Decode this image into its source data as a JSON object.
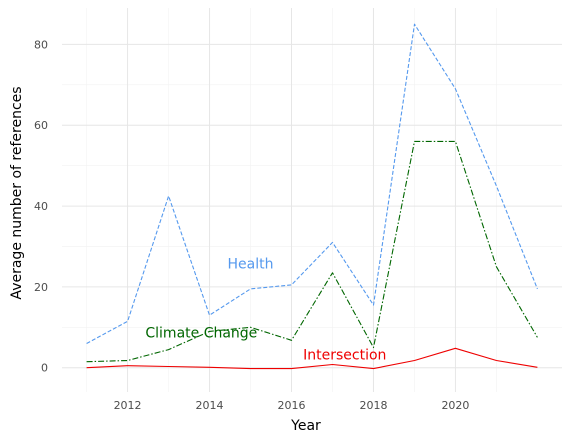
{
  "chart_data": {
    "type": "line",
    "xlabel": "Year",
    "ylabel": "Average number of references",
    "x": [
      2011,
      2012,
      2013,
      2014,
      2015,
      2016,
      2017,
      2018,
      2019,
      2020,
      2021,
      2022
    ],
    "xlim": [
      2010.4,
      2022.6
    ],
    "ylim": [
      -6,
      89
    ],
    "x_ticks": [
      2012,
      2014,
      2016,
      2018,
      2020
    ],
    "y_ticks": [
      0,
      20,
      40,
      60,
      80
    ],
    "grid": true,
    "legend": "none",
    "series": [
      {
        "name": "Health",
        "color": "#5599ee",
        "dash": "dashed",
        "values": [
          6,
          11.5,
          42.5,
          13,
          19.5,
          20.5,
          31,
          15.5,
          85,
          69,
          45,
          19.5
        ],
        "label_x": 2015,
        "label_y": 24.5
      },
      {
        "name": "Climate Change",
        "color": "#006600",
        "dash": "dashdot",
        "values": [
          1.5,
          1.8,
          4.5,
          9,
          10,
          6.8,
          23.5,
          5,
          56,
          56,
          25,
          7.5
        ],
        "label_x": 2013.8,
        "label_y": 7.5
      },
      {
        "name": "Intersection",
        "color": "#ee0000",
        "dash": "solid",
        "values": [
          0,
          0.5,
          0.3,
          0.1,
          -0.2,
          -0.2,
          0.8,
          -0.2,
          1.8,
          4.8,
          1.8,
          0.1
        ],
        "label_x": 2017.3,
        "label_y": 2
      }
    ]
  }
}
